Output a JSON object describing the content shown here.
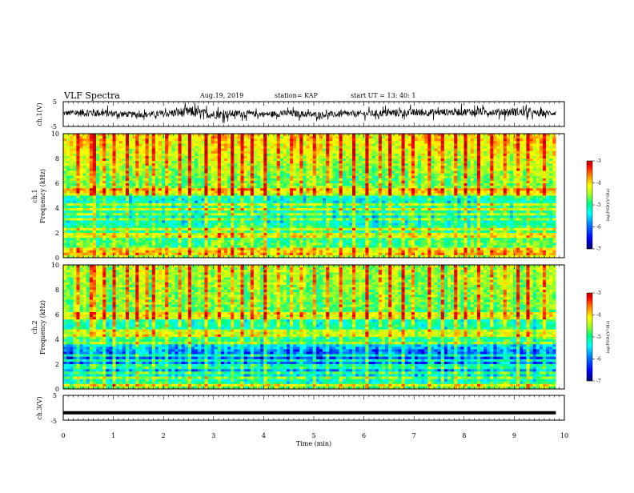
{
  "header": {
    "title": "VLF Spectra",
    "date": "Aug.19, 2019",
    "station": "station= KAP",
    "start": "start  UT  =   13: 40: 1"
  },
  "chart_data": [
    {
      "id": "ch1-waveform",
      "type": "line",
      "ylabel": "ch.1(V)",
      "ylim": [
        -5,
        5
      ],
      "y_ticks": [
        "5",
        "-5"
      ],
      "xlim": [
        0,
        10
      ],
      "data_xrange": [
        0,
        9.83
      ],
      "envelope": {
        "x": [
          0,
          0.5,
          1,
          1.5,
          2,
          2.5,
          3,
          3.5,
          4,
          4.5,
          5,
          5.5,
          6,
          6.5,
          7,
          7.5,
          8,
          8.5,
          9,
          9.5,
          9.83
        ],
        "center": [
          0.3,
          0.6,
          0.2,
          -0.3,
          0.1,
          0.9,
          -0.2,
          0.2,
          -0.1,
          0.3,
          -0.3,
          -0.1,
          0.1,
          0.4,
          0.6,
          0.7,
          0.9,
          0.8,
          0.9,
          0.2,
          0.5
        ],
        "spread": [
          1.5,
          2.5,
          2.0,
          1.5,
          2.0,
          3.0,
          2.5,
          2.0,
          1.5,
          2.0,
          1.8,
          1.8,
          1.8,
          2.2,
          2.2,
          2.0,
          2.2,
          2.0,
          2.4,
          1.8,
          1.5
        ]
      }
    },
    {
      "id": "ch1-spectrogram",
      "type": "heatmap",
      "ylabel": "ch.1\nFrequency (kHz)",
      "ylim": [
        0,
        10
      ],
      "y_ticks": [
        "0",
        "2",
        "4",
        "6",
        "8",
        "10"
      ],
      "xlim": [
        0,
        10
      ],
      "data_xrange": [
        0,
        9.83
      ],
      "colorbar": {
        "range": [
          -7,
          -3
        ],
        "ticks": [
          "-3",
          "-4",
          "-5",
          "-6",
          "-7"
        ],
        "label": "log(PSD)(V²/Hz)"
      },
      "mean_log_psd_profile": {
        "freq_khz": [
          0,
          0.5,
          1,
          1.5,
          2,
          2.5,
          3,
          3.5,
          4,
          4.5,
          5,
          5.5,
          6,
          6.5,
          7,
          7.5,
          8,
          8.5,
          9,
          9.5,
          10
        ],
        "value": [
          -4.6,
          -5.0,
          -5.1,
          -5.2,
          -5.2,
          -5.3,
          -5.6,
          -5.6,
          -5.3,
          -5.6,
          -5.4,
          -4.8,
          -5.0,
          -4.9,
          -4.8,
          -4.7,
          -4.6,
          -4.5,
          -4.4,
          -4.3,
          -4.3
        ]
      },
      "horizontal_lines_khz": [
        0.3,
        0.6,
        1.2,
        1.8,
        2.2,
        2.6,
        3.1,
        3.5,
        3.9,
        4.3,
        4.8,
        5.1,
        5.3,
        5.5
      ],
      "burst_times_min": [
        0.32,
        0.58,
        0.6,
        0.82,
        1.02,
        1.25,
        1.5,
        1.7,
        1.78,
        2.06,
        2.3,
        2.55,
        2.85,
        3.1,
        3.38,
        3.6,
        3.78,
        4.05,
        4.3,
        4.58,
        4.77,
        5.02,
        5.3,
        5.55,
        5.78,
        6.05,
        6.3,
        6.52,
        6.8,
        7.0,
        7.3,
        7.55,
        7.82,
        8.05,
        8.3,
        8.55,
        8.8,
        9.05,
        9.3,
        9.6
      ]
    },
    {
      "id": "ch2-spectrogram",
      "type": "heatmap",
      "ylabel": "ch.2\nFrequency (kHz)",
      "ylim": [
        0,
        10
      ],
      "y_ticks": [
        "0",
        "2",
        "4",
        "6",
        "8",
        "10"
      ],
      "xlim": [
        0,
        10
      ],
      "data_xrange": [
        0,
        9.83
      ],
      "colorbar": {
        "range": [
          -7,
          -3
        ],
        "ticks": [
          "-3",
          "-4",
          "-5",
          "-6",
          "-7"
        ],
        "label": "log(PSD)(V²/Hz)"
      },
      "mean_log_psd_profile": {
        "freq_khz": [
          0,
          0.5,
          1,
          1.5,
          2,
          2.5,
          3,
          3.5,
          4,
          4.5,
          5,
          5.5,
          6,
          6.5,
          7,
          7.5,
          8,
          8.5,
          9,
          9.5,
          10
        ],
        "value": [
          -4.9,
          -5.4,
          -5.7,
          -6.0,
          -6.2,
          -6.3,
          -6.2,
          -5.8,
          -5.2,
          -5.3,
          -5.4,
          -5.4,
          -5.1,
          -5.0,
          -4.9,
          -4.9,
          -4.9,
          -4.8,
          -4.8,
          -4.7,
          -4.7
        ]
      },
      "horizontal_lines_khz": [
        0.4,
        0.8,
        1.3,
        1.8,
        2.3,
        2.8,
        3.4,
        3.8,
        4.4,
        4.7,
        5.7,
        6.0
      ],
      "burst_times_min": [
        0.32,
        0.58,
        0.6,
        0.82,
        1.02,
        1.25,
        1.5,
        1.7,
        1.78,
        2.06,
        2.3,
        2.55,
        2.85,
        3.1,
        3.38,
        3.6,
        3.78,
        4.05,
        4.3,
        4.58,
        4.77,
        5.02,
        5.3,
        5.55,
        5.78,
        6.05,
        6.3,
        6.52,
        6.8,
        7.0,
        7.3,
        7.55,
        7.82,
        8.05,
        8.3,
        8.55,
        8.8,
        9.05,
        9.3,
        9.6
      ]
    },
    {
      "id": "ch3-waveform",
      "type": "line",
      "ylabel": "ch.3(V)",
      "ylim": [
        -5,
        5
      ],
      "y_ticks": [
        "5",
        "-5"
      ],
      "xlim": [
        0,
        10
      ],
      "data_xrange": [
        0,
        9.83
      ],
      "x": [
        0,
        9.83
      ],
      "y": [
        -2,
        -2
      ]
    }
  ],
  "x_axis": {
    "label": "Time (min)",
    "ticks": [
      "0",
      "1",
      "2",
      "3",
      "4",
      "5",
      "6",
      "7",
      "8",
      "9",
      "10"
    ]
  },
  "colormap": [
    "#00006e",
    "#0000ff",
    "#0080ff",
    "#00ffff",
    "#00ff80",
    "#a0ff20",
    "#ffff00",
    "#ff8000",
    "#ff0000",
    "#c00000"
  ]
}
